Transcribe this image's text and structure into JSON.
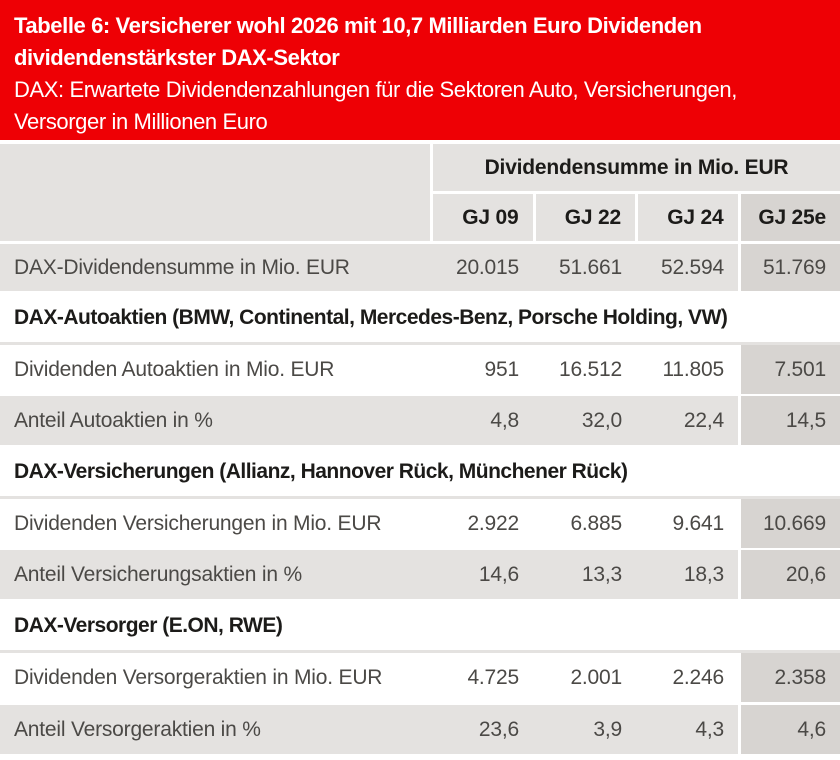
{
  "banner": {
    "title_line1": "Tabelle 6: Versicherer wohl 2026 mit 10,7 Milliarden Euro Dividenden",
    "title_line2": "dividendenstärkster DAX-Sektor",
    "subtitle_line1": "DAX: Erwartete Dividendenzahlungen für die Sektoren Auto, Versicherungen,",
    "subtitle_line2": "Versorger in Millionen Euro"
  },
  "table": {
    "group_header": "Dividendensumme in Mio. EUR",
    "columns": [
      "GJ 09",
      "GJ 22",
      "GJ 24",
      "GJ 25e"
    ],
    "highlight_column": "GJ 25e",
    "rows": [
      {
        "type": "data",
        "shade": "gray",
        "label": "DAX-Dividendensumme in Mio. EUR",
        "values": [
          "20.015",
          "51.661",
          "52.594",
          "51.769"
        ]
      },
      {
        "type": "section",
        "label": "DAX-Autoaktien (BMW, Continental, Mercedes-Benz, Porsche Holding, VW)"
      },
      {
        "type": "data",
        "shade": "white",
        "label": "Dividenden Autoaktien in Mio. EUR",
        "values": [
          "951",
          "16.512",
          "11.805",
          "7.501"
        ]
      },
      {
        "type": "data",
        "shade": "gray",
        "label": "Anteil Autoaktien in %",
        "values": [
          "4,8",
          "32,0",
          "22,4",
          "14,5"
        ]
      },
      {
        "type": "section",
        "label": "DAX-Versicherungen (Allianz, Hannover Rück, Münchener Rück)"
      },
      {
        "type": "data",
        "shade": "white",
        "label": "Dividenden Versicherungen in Mio. EUR",
        "values": [
          "2.922",
          "6.885",
          "9.641",
          "10.669"
        ]
      },
      {
        "type": "data",
        "shade": "gray",
        "label": "Anteil Versicherungsaktien in %",
        "values": [
          "14,6",
          "13,3",
          "18,3",
          "20,6"
        ]
      },
      {
        "type": "section",
        "label": "DAX-Versorger (E.ON, RWE)"
      },
      {
        "type": "data",
        "shade": "white",
        "label": "Dividenden Versorgeraktien in Mio. EUR",
        "values": [
          "4.725",
          "2.001",
          "2.246",
          "2.358"
        ]
      },
      {
        "type": "data",
        "shade": "gray",
        "label": "Anteil Versorgeraktien in %",
        "values": [
          "23,6",
          "3,9",
          "4,3",
          "4,6"
        ]
      }
    ]
  },
  "colors": {
    "banner_red": "#ee0005",
    "banner_text": "#ffffff",
    "cell_gray": "#e4e2e0",
    "highlight_gray": "#d7d4d1",
    "text_dark": "#4b4946",
    "text_black": "#1c1b19"
  },
  "chart_data": {
    "type": "table",
    "title": "Tabelle 6: Versicherer wohl 2026 mit 10,7 Milliarden Euro Dividenden dividendenstärkster DAX-Sektor",
    "subtitle": "DAX: Erwartete Dividendenzahlungen für die Sektoren Auto, Versicherungen, Versorger in Millionen Euro",
    "column_group": "Dividendensumme in Mio. EUR",
    "columns": [
      "GJ 09",
      "GJ 22",
      "GJ 24",
      "GJ 25e"
    ],
    "sections": [
      "DAX-Autoaktien (BMW, Continental, Mercedes-Benz, Porsche Holding, VW)",
      "DAX-Versicherungen (Allianz, Hannover Rück, Münchener Rück)",
      "DAX-Versorger (E.ON, RWE)"
    ],
    "rows": [
      {
        "label": "DAX-Dividendensumme in Mio. EUR",
        "values": [
          20015,
          51661,
          52594,
          51769
        ]
      },
      {
        "label": "Dividenden Autoaktien in Mio. EUR",
        "values": [
          951,
          16512,
          11805,
          7501
        ]
      },
      {
        "label": "Anteil Autoaktien in %",
        "values": [
          4.8,
          32.0,
          22.4,
          14.5
        ]
      },
      {
        "label": "Dividenden Versicherungen in Mio. EUR",
        "values": [
          2922,
          6885,
          9641,
          10669
        ]
      },
      {
        "label": "Anteil Versicherungsaktien in %",
        "values": [
          14.6,
          13.3,
          18.3,
          20.6
        ]
      },
      {
        "label": "Dividenden Versorgeraktien in Mio. EUR",
        "values": [
          4725,
          2001,
          2246,
          2358
        ]
      },
      {
        "label": "Anteil Versorgeraktien in %",
        "values": [
          23.6,
          3.9,
          4.3,
          4.6
        ]
      }
    ]
  }
}
